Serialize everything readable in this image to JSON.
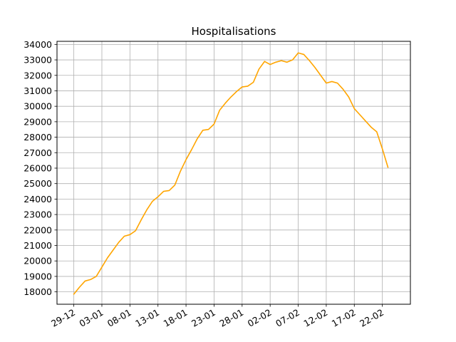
{
  "chart_data": {
    "type": "line",
    "title": "Hospitalisations",
    "xlabel": "",
    "ylabel": "",
    "x_tick_labels": [
      "29-12",
      "03-01",
      "08-01",
      "13-01",
      "18-01",
      "23-01",
      "28-01",
      "02-02",
      "07-02",
      "12-02",
      "17-02",
      "22-02"
    ],
    "x_tick_days": [
      0,
      5,
      10,
      15,
      20,
      25,
      30,
      35,
      40,
      45,
      50,
      55
    ],
    "y_ticks": [
      18000,
      19000,
      20000,
      21000,
      22000,
      23000,
      24000,
      25000,
      26000,
      27000,
      28000,
      29000,
      30000,
      31000,
      32000,
      33000,
      34000
    ],
    "xlim": [
      -3,
      60
    ],
    "ylim": [
      17200,
      34200
    ],
    "grid": true,
    "legend": "none",
    "series_color": "#ffa500",
    "series": [
      {
        "x": [
          0,
          1,
          2,
          3,
          4,
          5,
          6,
          7,
          8,
          9,
          10,
          11,
          12,
          13,
          14,
          15,
          16,
          17,
          18,
          19,
          20,
          21,
          22,
          23,
          24,
          25,
          26,
          27,
          28,
          29,
          30,
          31,
          32,
          33,
          34,
          35,
          36,
          37,
          38,
          39,
          40,
          41,
          42,
          43,
          44,
          45,
          46,
          47,
          48,
          49,
          50,
          51,
          52,
          53,
          54,
          55,
          56
        ],
        "values": [
          17850,
          18300,
          18700,
          18800,
          19000,
          19600,
          20200,
          20700,
          21200,
          21600,
          21700,
          21950,
          22650,
          23300,
          23850,
          24150,
          24500,
          24550,
          24900,
          25800,
          26550,
          27200,
          27900,
          28450,
          28500,
          28850,
          29750,
          30200,
          30600,
          30950,
          31250,
          31300,
          31550,
          32400,
          32900,
          32700,
          32850,
          32950,
          32850,
          33000,
          33450,
          33350,
          32950,
          32500,
          32000,
          31500,
          31600,
          31500,
          31100,
          30600,
          29850,
          29450,
          29050,
          28650,
          28350,
          27250,
          26050
        ]
      }
    ]
  }
}
